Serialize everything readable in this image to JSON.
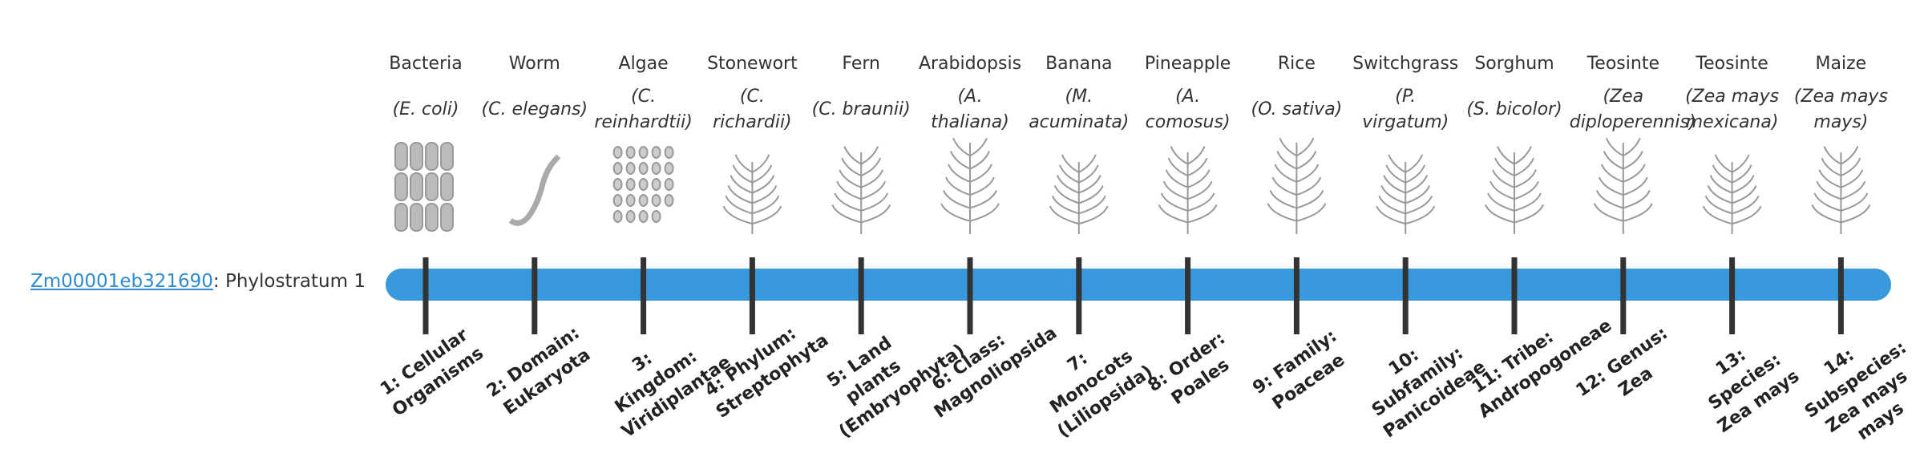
{
  "gene": {
    "id": "Zm00001eb321690",
    "label": ": Phylostratum 1"
  },
  "strata": [
    {
      "name": "Bacteria",
      "species": "(E. coli)",
      "rank": "1: Cellular Organisms"
    },
    {
      "name": "Worm",
      "species": "(C. elegans)",
      "rank": "2: Domain: Eukaryota"
    },
    {
      "name": "Algae",
      "species": "(C. reinhardtii)",
      "rank": "3: Kingdom: Viridiplantae"
    },
    {
      "name": "Stonewort",
      "species": "(C. richardii)",
      "rank": "4: Phylum: Streptophyta"
    },
    {
      "name": "Fern",
      "species": "(C. braunii)",
      "rank": "5: Land plants (Embryophyta)"
    },
    {
      "name": "Arabidopsis",
      "species": "(A. thaliana)",
      "rank": "6: Class: Magnoliopsida"
    },
    {
      "name": "Banana",
      "species": "(M. acuminata)",
      "rank": "7: Monocots (Liliopsida)"
    },
    {
      "name": "Pineapple",
      "species": "(A. comosus)",
      "rank": "8: Order: Poales"
    },
    {
      "name": "Rice",
      "species": "(O. sativa)",
      "rank": "9: Family: Poaceae"
    },
    {
      "name": "Switchgrass",
      "species": "(P. virgatum)",
      "rank": "10: Subfamily: Panicoideae"
    },
    {
      "name": "Sorghum",
      "species": "(S. bicolor)",
      "rank": "11: Tribe: Andropogoneae"
    },
    {
      "name": "Teosinte",
      "species": "(Zea diploperennis)",
      "rank": "12: Genus: Zea"
    },
    {
      "name": "Teosinte",
      "species": "(Zea mays mexicana)",
      "rank": "13: Species: Zea mays"
    },
    {
      "name": "Maize",
      "species": "(Zea mays mays)",
      "rank": "14: Subspecies: Zea mays mays"
    }
  ]
}
